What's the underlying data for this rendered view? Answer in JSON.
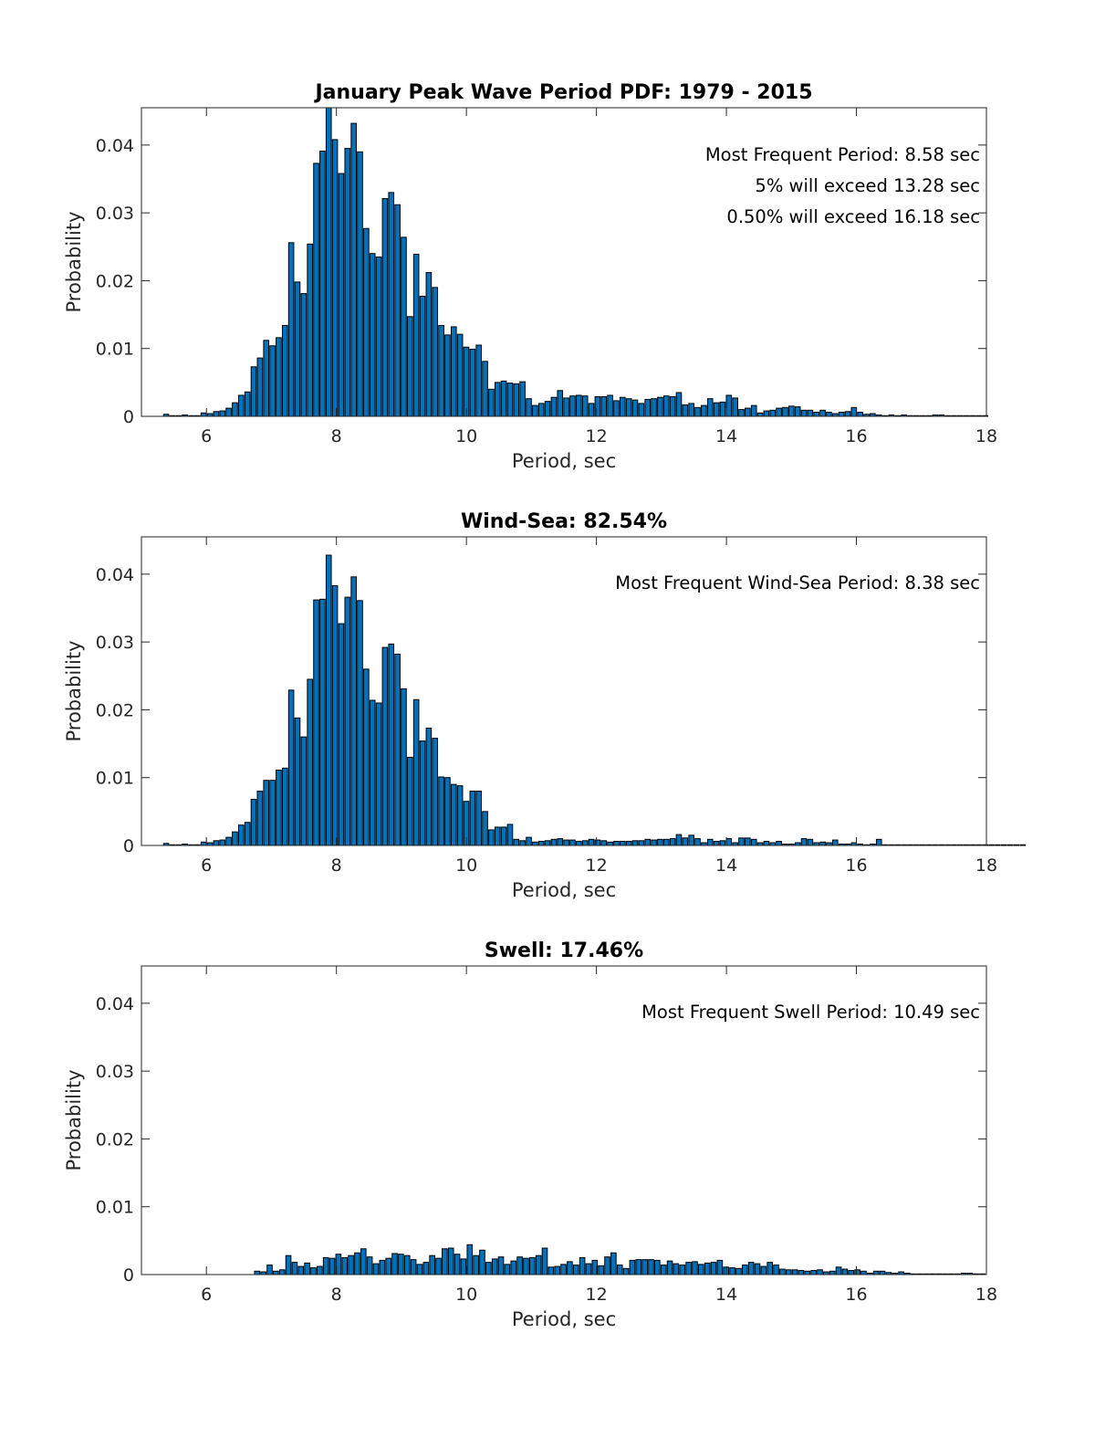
{
  "figure": {
    "bar_color": "#0072BD",
    "edge_color": "#000000",
    "bin_width": 0.0962
  },
  "chart_data": [
    {
      "type": "bar",
      "title": "January Peak Wave Period PDF: 1979 - 2015",
      "xlabel": "Period, sec",
      "ylabel": "Probability",
      "xlim": [
        5.0,
        18.0
      ],
      "ylim": [
        0,
        0.0455
      ],
      "xticks": [
        "6",
        "8",
        "10",
        "12",
        "14",
        "16",
        "18"
      ],
      "yticks": [
        "0",
        "0.01",
        "0.02",
        "0.03",
        "0.04"
      ],
      "grid": false,
      "annotations": [
        "Most Frequent Period: 8.58 sec",
        "5% will exceed 13.28 sec",
        "0.50% will exceed 16.18 sec"
      ],
      "x_start": 5.38,
      "values": [
        0.0003,
        0.0001,
        0.0001,
        0.0002,
        0.0001,
        0.0001,
        0.0005,
        0.0004,
        0.0007,
        0.0008,
        0.0012,
        0.002,
        0.0031,
        0.0036,
        0.0073,
        0.0086,
        0.0112,
        0.0104,
        0.0116,
        0.0134,
        0.0256,
        0.0198,
        0.0181,
        0.0254,
        0.0373,
        0.0391,
        0.0455,
        0.0408,
        0.0358,
        0.0395,
        0.0432,
        0.039,
        0.0277,
        0.024,
        0.0235,
        0.0321,
        0.033,
        0.0312,
        0.0264,
        0.0147,
        0.0239,
        0.0177,
        0.0212,
        0.019,
        0.0134,
        0.012,
        0.0132,
        0.0121,
        0.0102,
        0.0099,
        0.0105,
        0.0081,
        0.004,
        0.005,
        0.0052,
        0.0049,
        0.0048,
        0.0051,
        0.0026,
        0.0016,
        0.0019,
        0.0022,
        0.0028,
        0.0038,
        0.0027,
        0.003,
        0.0031,
        0.003,
        0.0019,
        0.0029,
        0.0029,
        0.0031,
        0.0023,
        0.0028,
        0.0026,
        0.0024,
        0.0019,
        0.0025,
        0.0026,
        0.0028,
        0.003,
        0.0029,
        0.0035,
        0.0017,
        0.0019,
        0.0013,
        0.0016,
        0.0026,
        0.002,
        0.0021,
        0.0031,
        0.0027,
        0.001,
        0.0012,
        0.0016,
        0.0005,
        0.0008,
        0.0009,
        0.0012,
        0.0013,
        0.0015,
        0.0014,
        0.0009,
        0.0009,
        0.0006,
        0.0009,
        0.0006,
        0.0004,
        0.0006,
        0.0007,
        0.0013,
        0.0006,
        0.0003,
        0.0004,
        0.0002,
        0.0001,
        0.0002,
        0.0001,
        0.0002,
        0.0001,
        0.0001,
        0.0001,
        0.0001,
        0.0002,
        0.0002,
        0.0001,
        0.0001,
        0.0001,
        0.0001,
        0.0001,
        0.0001,
        0.0001
      ]
    },
    {
      "type": "bar",
      "title": "Wind-Sea: 82.54%",
      "xlabel": "Period, sec",
      "ylabel": "Probability",
      "xlim": [
        5.0,
        18.0
      ],
      "ylim": [
        0,
        0.0455
      ],
      "xticks": [
        "6",
        "8",
        "10",
        "12",
        "14",
        "16",
        "18"
      ],
      "yticks": [
        "0",
        "0.01",
        "0.02",
        "0.03",
        "0.04"
      ],
      "grid": false,
      "annotations": [
        "Most Frequent Wind-Sea Period: 8.38 sec"
      ],
      "x_start": 5.38,
      "values": [
        0.0003,
        0.0001,
        0.0001,
        0.0002,
        0.0001,
        0.0001,
        0.0005,
        0.0004,
        0.0007,
        0.0008,
        0.0012,
        0.002,
        0.003,
        0.0034,
        0.0068,
        0.008,
        0.0096,
        0.0096,
        0.0111,
        0.0114,
        0.0229,
        0.0188,
        0.016,
        0.0245,
        0.0362,
        0.0363,
        0.0428,
        0.0383,
        0.0327,
        0.0366,
        0.0396,
        0.0361,
        0.026,
        0.0214,
        0.021,
        0.0292,
        0.0297,
        0.0282,
        0.0231,
        0.013,
        0.0215,
        0.0154,
        0.0173,
        0.0158,
        0.0101,
        0.01,
        0.009,
        0.0088,
        0.0065,
        0.008,
        0.008,
        0.005,
        0.0023,
        0.0027,
        0.0027,
        0.0031,
        0.0009,
        0.0007,
        0.0012,
        0.0005,
        0.0006,
        0.0007,
        0.0009,
        0.001,
        0.0008,
        0.0008,
        0.0006,
        0.0007,
        0.0009,
        0.0008,
        0.0007,
        0.0005,
        0.0006,
        0.0006,
        0.0006,
        0.0007,
        0.0007,
        0.0009,
        0.0008,
        0.0009,
        0.0009,
        0.001,
        0.0016,
        0.0011,
        0.0015,
        0.001,
        0.0004,
        0.0009,
        0.0006,
        0.0007,
        0.001,
        0.0004,
        0.0011,
        0.0011,
        0.0009,
        0.0004,
        0.0006,
        0.0004,
        0.0006,
        0.0002,
        0.0002,
        0.0004,
        0.001,
        0.0009,
        0.0004,
        0.0005,
        0.0004,
        0.0008,
        0.0002,
        0.0002,
        0.0004,
        0.0002,
        0.0001,
        0.0002,
        0.0009,
        0.0001,
        0.0001,
        0.0001,
        0.0001,
        0.0001,
        0.0001,
        0.0001,
        0.0001,
        0.0001,
        0.0001,
        0.0001,
        0.0001,
        0.0001,
        0.0001,
        0.0001,
        0.0001,
        0.0001,
        0.0001,
        0.0001,
        0.0001,
        0.0001,
        0.0001,
        0.0001
      ]
    },
    {
      "type": "bar",
      "title": "Swell: 17.46%",
      "xlabel": "Period, sec",
      "ylabel": "Probability",
      "xlim": [
        5.0,
        18.0
      ],
      "ylim": [
        0,
        0.0455
      ],
      "xticks": [
        "6",
        "8",
        "10",
        "12",
        "14",
        "16",
        "18"
      ],
      "yticks": [
        "0",
        "0.01",
        "0.02",
        "0.03",
        "0.04"
      ],
      "grid": false,
      "annotations": [
        "Most Frequent Swell Period: 10.49 sec"
      ],
      "x_start": 6.78,
      "values": [
        0.0005,
        0.0004,
        0.0014,
        0.0005,
        0.0007,
        0.0028,
        0.0018,
        0.0012,
        0.0017,
        0.001,
        0.0012,
        0.0025,
        0.0024,
        0.003,
        0.0025,
        0.0028,
        0.0032,
        0.0038,
        0.0026,
        0.0016,
        0.0021,
        0.0024,
        0.0031,
        0.003,
        0.0028,
        0.0022,
        0.0015,
        0.0018,
        0.0028,
        0.0024,
        0.0038,
        0.0039,
        0.003,
        0.0023,
        0.0044,
        0.0028,
        0.0036,
        0.0018,
        0.0023,
        0.0026,
        0.0015,
        0.002,
        0.0026,
        0.0024,
        0.0025,
        0.0028,
        0.0039,
        0.0011,
        0.0012,
        0.0015,
        0.0019,
        0.0014,
        0.0025,
        0.0016,
        0.0021,
        0.0013,
        0.0026,
        0.0032,
        0.0014,
        0.0009,
        0.0021,
        0.0022,
        0.0022,
        0.0022,
        0.0021,
        0.0014,
        0.002,
        0.0016,
        0.0014,
        0.0018,
        0.0019,
        0.0015,
        0.0017,
        0.0018,
        0.0021,
        0.0011,
        0.001,
        0.0009,
        0.0014,
        0.0018,
        0.0016,
        0.0012,
        0.0018,
        0.0014,
        0.0008,
        0.0007,
        0.0007,
        0.0006,
        0.0005,
        0.0006,
        0.0007,
        0.0004,
        0.0005,
        0.0011,
        0.0008,
        0.0006,
        0.0007,
        0.0005,
        0.0002,
        0.0005,
        0.0005,
        0.0003,
        0.0002,
        0.0004,
        0.0002,
        0.0001,
        0.0001,
        0.0001,
        0.0001,
        0.0001,
        0.0001,
        0.0001,
        0.0001,
        0.0002,
        0.0002,
        0.0001,
        0.0001
      ]
    }
  ]
}
